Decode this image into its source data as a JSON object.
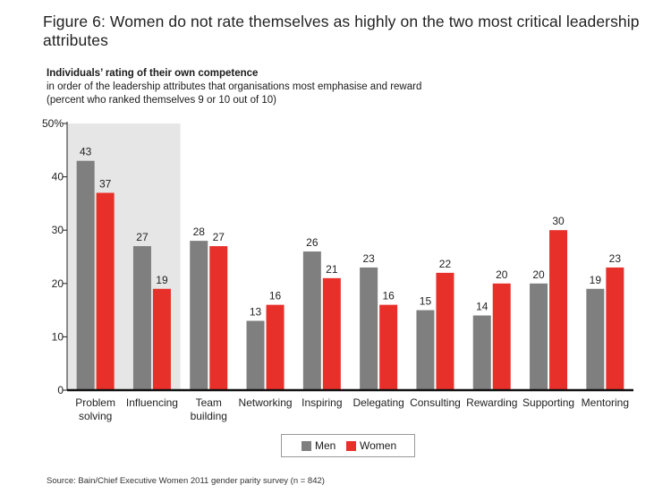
{
  "figure_title": "Figure 6: Women do not rate themselves as highly on the two most critical leadership attributes",
  "subtitle": {
    "heading": "Individuals’ rating of their own competence",
    "line1": "in order of the leadership attributes that organisations most emphasise and reward",
    "line2": "(percent who ranked themselves 9 or 10 out of 10)"
  },
  "source": "Source: Bain/Chief Executive Women 2011 gender parity survey (n = 842)",
  "colors": {
    "men": "#7f7f7f",
    "women": "#e8302a",
    "highlight": "#e6e6e6"
  },
  "chart_data": {
    "type": "bar",
    "categories": [
      "Problem solving",
      "Influencing",
      "Team building",
      "Networking",
      "Inspiring",
      "Delegating",
      "Consulting",
      "Rewarding",
      "Supporting",
      "Mentoring"
    ],
    "category_lines": [
      [
        "Problem",
        "solving"
      ],
      [
        "Influencing"
      ],
      [
        "Team",
        "building"
      ],
      [
        "Networking"
      ],
      [
        "Inspiring"
      ],
      [
        "Delegating"
      ],
      [
        "Consulting"
      ],
      [
        "Rewarding"
      ],
      [
        "Supporting"
      ],
      [
        "Mentoring"
      ]
    ],
    "series": [
      {
        "name": "Men",
        "values": [
          43,
          27,
          28,
          13,
          26,
          23,
          15,
          14,
          20,
          19
        ]
      },
      {
        "name": "Women",
        "values": [
          37,
          19,
          27,
          16,
          21,
          16,
          22,
          20,
          30,
          23
        ]
      }
    ],
    "ylim": [
      0,
      50
    ],
    "yticks": [
      0,
      10,
      20,
      30,
      40,
      50
    ],
    "ytick_labels": [
      "0",
      "10",
      "20",
      "30",
      "40",
      "50%"
    ],
    "highlighted_categories": [
      "Problem solving",
      "Influencing"
    ],
    "legend": [
      "Men",
      "Women"
    ],
    "legend_position": "bottom-center"
  }
}
